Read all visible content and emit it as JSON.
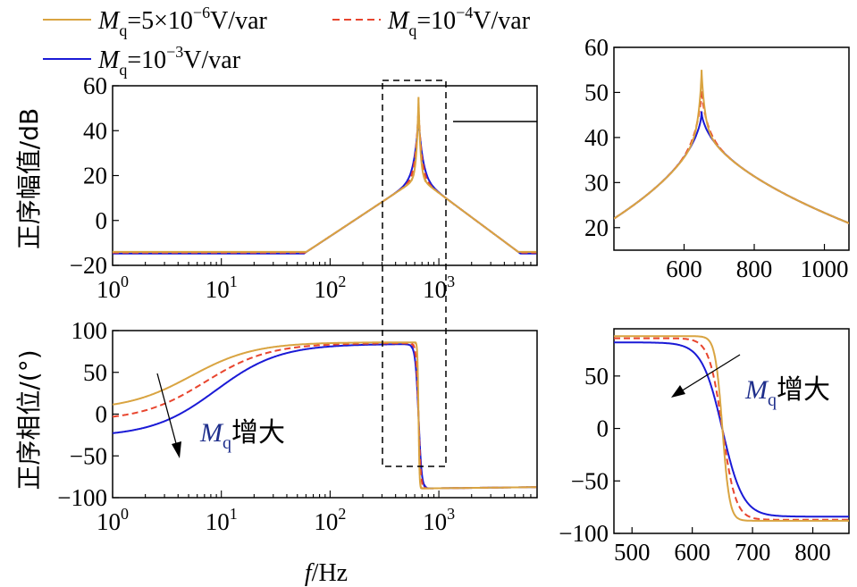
{
  "colors": {
    "gold": "#D9A441",
    "red": "#E8452E",
    "blue": "#1A1AD6",
    "annot": "#1F2F8C"
  },
  "legend": [
    {
      "name_pre": "M",
      "name_sub": "q",
      "name_post": "=5×10",
      "exp": "−6",
      "unit": "V/var",
      "color": "gold",
      "dash": false
    },
    {
      "name_pre": "M",
      "name_sub": "q",
      "name_post": "=10",
      "exp": "−4",
      "unit": "V/var",
      "color": "red",
      "dash": true
    },
    {
      "name_pre": "M",
      "name_sub": "q",
      "name_post": "=10",
      "exp": "−3",
      "unit": "V/var",
      "color": "blue",
      "dash": false
    }
  ],
  "xlabel": {
    "italic": "f",
    "rest": "/Hz"
  },
  "annotation": {
    "pre": "M",
    "sub": "q",
    "post": "增大"
  },
  "chart_data": [
    {
      "id": "mag-main",
      "type": "line",
      "ylabel": "正序幅值/dB",
      "xscale": "log",
      "xlim": [
        1,
        8000
      ],
      "ylim": [
        -20,
        60
      ],
      "yticks": [
        60,
        40,
        20,
        0,
        -20
      ],
      "xtick_labels": [
        {
          "base": "10",
          "exp": "0"
        },
        {
          "base": "10",
          "exp": "1"
        },
        {
          "base": "10",
          "exp": "2"
        },
        {
          "base": "10",
          "exp": "3"
        }
      ]
    },
    {
      "id": "phase-main",
      "type": "line",
      "ylabel": "正序相位/(°)",
      "xscale": "log",
      "xlim": [
        1,
        8000
      ],
      "ylim": [
        -100,
        100
      ],
      "yticks": [
        100,
        50,
        0,
        -50,
        -100
      ],
      "xtick_labels": [
        {
          "base": "10",
          "exp": "0"
        },
        {
          "base": "10",
          "exp": "1"
        },
        {
          "base": "10",
          "exp": "2"
        },
        {
          "base": "10",
          "exp": "3"
        }
      ]
    },
    {
      "id": "mag-zoom",
      "type": "line",
      "xlim": [
        400,
        1070
      ],
      "ylim": [
        15,
        60
      ],
      "yticks": [
        60,
        50,
        40,
        30,
        20
      ],
      "xticks": [
        600,
        800,
        1000
      ]
    },
    {
      "id": "phase-zoom",
      "type": "line",
      "xlim": [
        470,
        860
      ],
      "ylim": [
        -100,
        95
      ],
      "yticks": [
        50,
        0,
        -50,
        -100
      ],
      "xticks": [
        500,
        600,
        700,
        800
      ]
    }
  ],
  "series_params": {
    "f0": 650,
    "peaks_db": [
      55,
      50.5,
      45.8
    ],
    "peak_labels": [
      "gold",
      "red",
      "blue"
    ]
  }
}
